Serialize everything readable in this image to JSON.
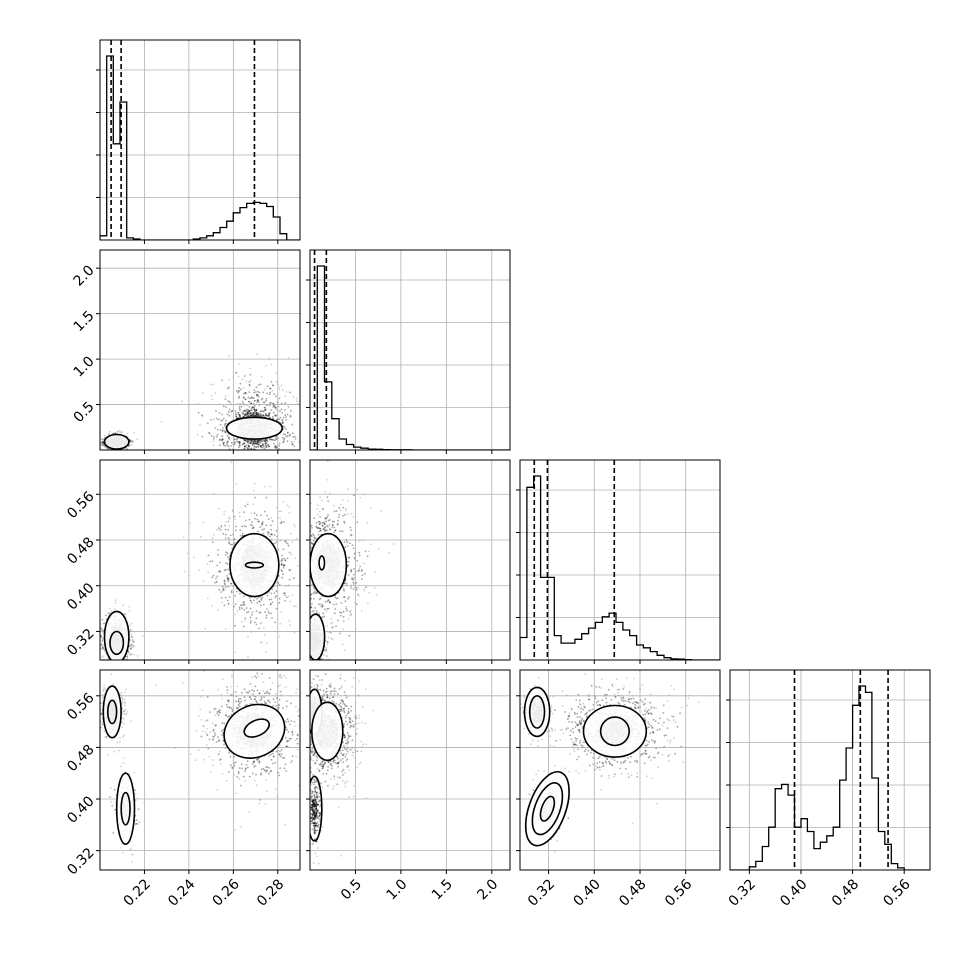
{
  "chart_data": {
    "type": "corner-plot",
    "title": "",
    "grid": true,
    "colors": {
      "line": "#000000",
      "grid": "#b0b0b0",
      "frame": "#000000",
      "background": "#ffffff"
    },
    "parameters": [
      {
        "index": 0,
        "range": [
          0.2,
          0.29
        ],
        "ticks": [
          "0.22",
          "0.24",
          "0.26",
          "0.28"
        ],
        "tick_values": [
          0.22,
          0.24,
          0.26,
          0.28
        ]
      },
      {
        "index": 1,
        "range": [
          0.0,
          2.2
        ],
        "ticks": [
          "0.5",
          "1.0",
          "1.5",
          "2.0"
        ],
        "tick_values": [
          0.5,
          1.0,
          1.5,
          2.0
        ]
      },
      {
        "index": 2,
        "range": [
          0.27,
          0.62
        ],
        "ticks": [
          "0.32",
          "0.40",
          "0.48",
          "0.56"
        ],
        "tick_values": [
          0.32,
          0.4,
          0.48,
          0.56
        ]
      },
      {
        "index": 3,
        "range": [
          0.29,
          0.6
        ],
        "ticks": [
          "0.32",
          "0.40",
          "0.48",
          "0.56"
        ],
        "tick_values": [
          0.32,
          0.4,
          0.48,
          0.56
        ]
      }
    ],
    "histograms": [
      {
        "param": 0,
        "bin_edges": [
          0.2,
          0.203,
          0.206,
          0.209,
          0.212,
          0.215,
          0.218,
          0.221,
          0.224,
          0.227,
          0.23,
          0.233,
          0.236,
          0.239,
          0.242,
          0.245,
          0.248,
          0.251,
          0.254,
          0.257,
          0.26,
          0.263,
          0.266,
          0.269,
          0.272,
          0.275,
          0.278,
          0.281,
          0.284,
          0.287,
          0.29
        ],
        "counts": [
          0.02,
          0.88,
          0.46,
          0.66,
          0.01,
          0.005,
          0,
          0,
          0,
          0,
          0,
          0,
          0,
          0,
          0.005,
          0.01,
          0.02,
          0.035,
          0.06,
          0.09,
          0.13,
          0.155,
          0.175,
          0.18,
          0.175,
          0.16,
          0.11,
          0.03,
          0,
          0,
          0
        ],
        "quantiles": [
          0.205,
          0.2095,
          0.2695
        ]
      },
      {
        "param": 1,
        "bin_edges": [
          0.0,
          0.08,
          0.16,
          0.24,
          0.32,
          0.4,
          0.48,
          0.56,
          0.64,
          0.72,
          0.8,
          0.88,
          0.96,
          1.04,
          1.12,
          1.2,
          1.28,
          1.36,
          1.44,
          1.52,
          1.6,
          1.68,
          1.76,
          1.84,
          1.92,
          2.0,
          2.08,
          2.16
        ],
        "counts": [
          0.0,
          1.0,
          0.37,
          0.17,
          0.06,
          0.03,
          0.016,
          0.01,
          0.005,
          0.004,
          0.002,
          0.001,
          0.001,
          0.001,
          0,
          0,
          0,
          0,
          0,
          0,
          0,
          0,
          0,
          0,
          0,
          0,
          0
        ],
        "quantiles": [
          0.05,
          0.18
        ]
      },
      {
        "param": 2,
        "bin_edges": [
          0.27,
          0.282,
          0.294,
          0.306,
          0.318,
          0.33,
          0.342,
          0.354,
          0.366,
          0.378,
          0.39,
          0.402,
          0.414,
          0.426,
          0.438,
          0.45,
          0.462,
          0.474,
          0.486,
          0.498,
          0.51,
          0.522,
          0.534,
          0.546,
          0.558,
          0.57,
          0.582,
          0.594,
          0.606,
          0.618
        ],
        "counts": [
          0.12,
          0.92,
          0.98,
          0.44,
          0.44,
          0.13,
          0.09,
          0.09,
          0.11,
          0.14,
          0.17,
          0.2,
          0.23,
          0.25,
          0.2,
          0.16,
          0.13,
          0.08,
          0.065,
          0.045,
          0.025,
          0.012,
          0.006,
          0.004,
          0.002,
          0,
          0,
          0,
          0,
          0
        ],
        "quantiles": [
          0.295,
          0.318,
          0.435
        ]
      },
      {
        "param": 3,
        "bin_edges": [
          0.29,
          0.3,
          0.31,
          0.32,
          0.33,
          0.34,
          0.35,
          0.36,
          0.37,
          0.38,
          0.39,
          0.4,
          0.41,
          0.42,
          0.43,
          0.44,
          0.45,
          0.46,
          0.47,
          0.48,
          0.49,
          0.5,
          0.51,
          0.52,
          0.53,
          0.54,
          0.55,
          0.56,
          0.57,
          0.58,
          0.59,
          0.6
        ],
        "counts": [
          0,
          0,
          0,
          0.015,
          0.04,
          0.11,
          0.2,
          0.38,
          0.4,
          0.35,
          0.2,
          0.24,
          0.18,
          0.1,
          0.13,
          0.16,
          0.2,
          0.42,
          0.57,
          0.77,
          0.86,
          0.83,
          0.43,
          0.18,
          0.12,
          0.03,
          0.01,
          0,
          0,
          0,
          0
        ],
        "quantiles": [
          0.39,
          0.492,
          0.535
        ]
      }
    ],
    "scatter_2d": [
      {
        "row": 1,
        "col": 0,
        "clusters": [
          {
            "center": [
              0.2075,
              0.09
            ],
            "sigma": [
              0.0022,
              0.03
            ],
            "weight": 0.5,
            "gray": 0.08
          },
          {
            "center": [
              0.2695,
              0.24
            ],
            "sigma": [
              0.008,
              0.2
            ],
            "weight": 0.5,
            "gray": 0.35
          }
        ],
        "contours": [
          {
            "cx": 0.2075,
            "cy": 0.09,
            "rx": 0.0055,
            "ry": 0.08
          },
          {
            "cx": 0.2695,
            "cy": 0.24,
            "rx": 0.0125,
            "ry": 0.12
          }
        ]
      },
      {
        "row": 2,
        "col": 0,
        "clusters": [
          {
            "center": [
              0.2075,
              0.305
            ],
            "sigma": [
              0.0025,
              0.018
            ],
            "weight": 0.5,
            "gray": 0.3
          },
          {
            "center": [
              0.2695,
              0.436
            ],
            "sigma": [
              0.007,
              0.04
            ],
            "weight": 0.5,
            "gray": 0.35
          }
        ],
        "contours": [
          {
            "cx": 0.2075,
            "cy": 0.31,
            "rx": 0.0055,
            "ry": 0.045
          },
          {
            "cx": 0.2075,
            "cy": 0.3,
            "rx": 0.003,
            "ry": 0.02
          },
          {
            "cx": 0.2695,
            "cy": 0.436,
            "rx": 0.011,
            "ry": 0.055
          },
          {
            "cx": 0.2695,
            "cy": 0.436,
            "rx": 0.004,
            "ry": 0.005
          }
        ]
      },
      {
        "row": 2,
        "col": 1,
        "clusters": [
          {
            "center": [
              0.06,
              0.305
            ],
            "sigma": [
              0.04,
              0.016
            ],
            "weight": 0.5,
            "gray": 0.25
          },
          {
            "center": [
              0.2,
              0.436
            ],
            "sigma": [
              0.15,
              0.04
            ],
            "weight": 0.5,
            "gray": 0.35
          }
        ],
        "contours": [
          {
            "cx": 0.06,
            "cy": 0.31,
            "rx": 0.1,
            "ry": 0.04
          },
          {
            "cx": 0.2,
            "cy": 0.436,
            "rx": 0.2,
            "ry": 0.055
          },
          {
            "cx": 0.13,
            "cy": 0.44,
            "rx": 0.03,
            "ry": 0.012
          }
        ]
      },
      {
        "row": 3,
        "col": 0,
        "clusters": [
          {
            "center": [
              0.2055,
              0.535
            ],
            "sigma": [
              0.0018,
              0.012
            ],
            "weight": 0.35,
            "gray": 0.2
          },
          {
            "center": [
              0.2115,
              0.385
            ],
            "sigma": [
              0.002,
              0.02
            ],
            "weight": 0.15,
            "gray": 0.3
          },
          {
            "center": [
              0.2695,
              0.505
            ],
            "sigma": [
              0.008,
              0.03
            ],
            "weight": 0.5,
            "gray": 0.35
          }
        ],
        "contours": [
          {
            "cx": 0.2055,
            "cy": 0.535,
            "rx": 0.004,
            "ry": 0.04
          },
          {
            "cx": 0.2055,
            "cy": 0.535,
            "rx": 0.002,
            "ry": 0.018
          },
          {
            "cx": 0.2115,
            "cy": 0.385,
            "rx": 0.004,
            "ry": 0.055
          },
          {
            "cx": 0.2115,
            "cy": 0.385,
            "rx": 0.002,
            "ry": 0.025
          },
          {
            "cx": 0.2695,
            "cy": 0.505,
            "rx": 0.014,
            "ry": 0.04,
            "rot": -25
          },
          {
            "cx": 0.2705,
            "cy": 0.51,
            "rx": 0.006,
            "ry": 0.012,
            "rot": -25
          }
        ]
      },
      {
        "row": 3,
        "col": 1,
        "clusters": [
          {
            "center": [
              0.05,
              0.535
            ],
            "sigma": [
              0.03,
              0.012
            ],
            "weight": 0.35,
            "gray": 0.25
          },
          {
            "center": [
              0.05,
              0.385
            ],
            "sigma": [
              0.03,
              0.02
            ],
            "weight": 0.15,
            "gray": 0.3
          },
          {
            "center": [
              0.18,
              0.505
            ],
            "sigma": [
              0.14,
              0.03
            ],
            "weight": 0.5,
            "gray": 0.35
          }
        ],
        "contours": [
          {
            "cx": 0.05,
            "cy": 0.535,
            "rx": 0.08,
            "ry": 0.035
          },
          {
            "cx": 0.05,
            "cy": 0.385,
            "rx": 0.08,
            "ry": 0.05
          },
          {
            "cx": 0.19,
            "cy": 0.505,
            "rx": 0.17,
            "ry": 0.045
          }
        ]
      },
      {
        "row": 3,
        "col": 2,
        "clusters": [
          {
            "center": [
              0.3,
              0.535
            ],
            "sigma": [
              0.008,
              0.012
            ],
            "weight": 0.35,
            "gray": 0.1
          },
          {
            "center": [
              0.318,
              0.385
            ],
            "sigma": [
              0.01,
              0.02
            ],
            "weight": 0.15,
            "gray": 0.25
          },
          {
            "center": [
              0.436,
              0.505
            ],
            "sigma": [
              0.035,
              0.025
            ],
            "weight": 0.5,
            "gray": 0.4
          }
        ],
        "contours": [
          {
            "cx": 0.3,
            "cy": 0.535,
            "rx": 0.022,
            "ry": 0.038
          },
          {
            "cx": 0.3,
            "cy": 0.535,
            "rx": 0.013,
            "ry": 0.025
          },
          {
            "cx": 0.318,
            "cy": 0.385,
            "rx": 0.032,
            "ry": 0.06,
            "rot": 20
          },
          {
            "cx": 0.318,
            "cy": 0.385,
            "rx": 0.022,
            "ry": 0.042,
            "rot": 20
          },
          {
            "cx": 0.318,
            "cy": 0.385,
            "rx": 0.01,
            "ry": 0.02,
            "rot": 20
          },
          {
            "cx": 0.436,
            "cy": 0.505,
            "rx": 0.055,
            "ry": 0.04
          },
          {
            "cx": 0.436,
            "cy": 0.505,
            "rx": 0.025,
            "ry": 0.022
          }
        ]
      }
    ]
  }
}
